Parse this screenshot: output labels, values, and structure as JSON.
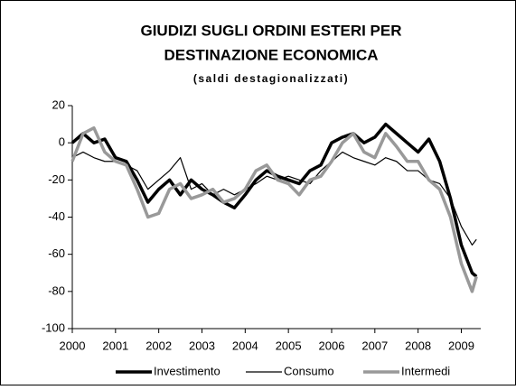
{
  "chart_data": {
    "type": "line",
    "title": "GIUDIZI SUGLI ORDINI ESTERI PER",
    "title_line2": "DESTINAZIONE ECONOMICA",
    "subtitle": "(saldi destagionalizzati)",
    "x": [
      2000,
      2000.25,
      2000.5,
      2000.75,
      2001,
      2001.25,
      2001.5,
      2001.75,
      2002,
      2002.25,
      2002.5,
      2002.75,
      2003,
      2003.25,
      2003.5,
      2003.75,
      2004,
      2004.25,
      2004.5,
      2004.75,
      2005,
      2005.25,
      2005.5,
      2005.75,
      2006,
      2006.25,
      2006.5,
      2006.75,
      2007,
      2007.25,
      2007.5,
      2007.75,
      2008,
      2008.25,
      2008.5,
      2008.75,
      2009,
      2009.25,
      2009.35
    ],
    "series": [
      {
        "name": "Investimento",
        "color": "#000000",
        "width": 3.5,
        "values": [
          0,
          5,
          0,
          2,
          -8,
          -10,
          -20,
          -32,
          -25,
          -20,
          -28,
          -20,
          -25,
          -28,
          -32,
          -35,
          -28,
          -20,
          -15,
          -18,
          -20,
          -22,
          -15,
          -12,
          0,
          3,
          5,
          0,
          3,
          10,
          5,
          0,
          -5,
          2,
          -10,
          -30,
          -55,
          -70,
          -72
        ]
      },
      {
        "name": "Consumo",
        "color": "#000000",
        "width": 1.2,
        "values": [
          -8,
          -5,
          -8,
          -10,
          -10,
          -12,
          -15,
          -25,
          -20,
          -15,
          -8,
          -25,
          -22,
          -28,
          -25,
          -28,
          -25,
          -22,
          -18,
          -20,
          -18,
          -20,
          -22,
          -15,
          -10,
          -5,
          -8,
          -10,
          -12,
          -8,
          -10,
          -15,
          -15,
          -20,
          -22,
          -30,
          -45,
          -55,
          -52
        ]
      },
      {
        "name": "Intermedi",
        "color": "#999999",
        "width": 3.5,
        "values": [
          -10,
          5,
          8,
          -5,
          -10,
          -12,
          -25,
          -40,
          -38,
          -25,
          -22,
          -30,
          -28,
          -25,
          -32,
          -30,
          -25,
          -15,
          -12,
          -20,
          -22,
          -28,
          -20,
          -18,
          -10,
          0,
          5,
          -5,
          -8,
          5,
          -2,
          -10,
          -10,
          -20,
          -25,
          -40,
          -65,
          -80,
          -72
        ]
      }
    ],
    "xlim": [
      2000,
      2009.45
    ],
    "xticks": [
      2000,
      2001,
      2002,
      2003,
      2004,
      2005,
      2006,
      2007,
      2008,
      2009
    ],
    "ylim": [
      -100,
      20
    ],
    "yticks": [
      20,
      0,
      -20,
      -40,
      -60,
      -80,
      -100
    ]
  }
}
